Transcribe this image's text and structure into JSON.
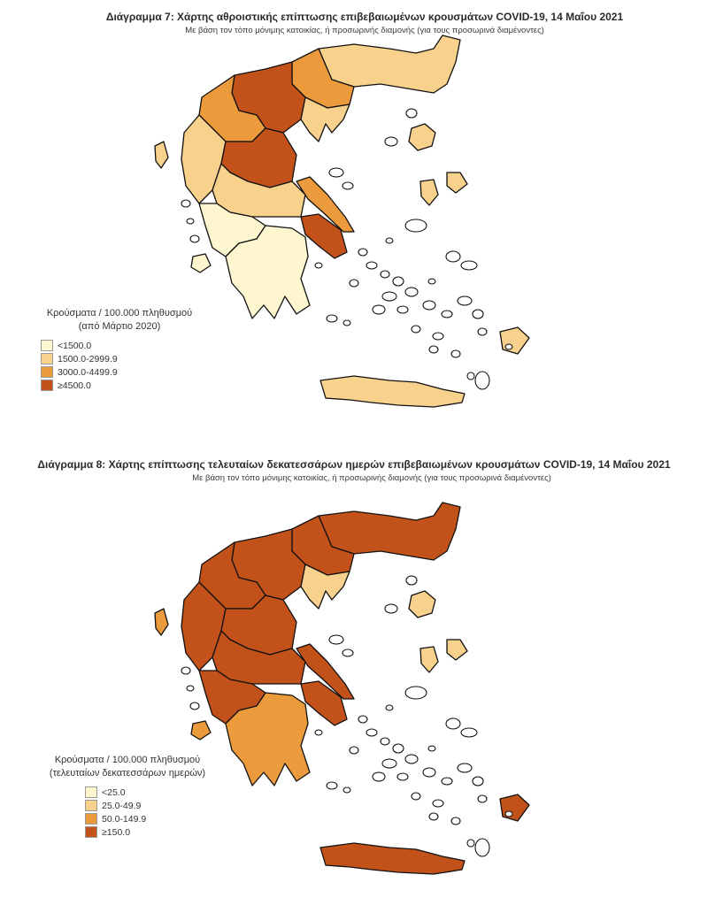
{
  "colors": {
    "c1": "#fdf6cf",
    "c2": "#f8d18c",
    "c3": "#eb9a3c",
    "c4": "#c2521a"
  },
  "maps": [
    {
      "title": "Διάγραμμα 7: Χάρτης αθροιστικής επίπτωσης επιβεβαιωμένων κρουσμάτων COVID-19, 14 Μαΐου 2021",
      "subtitle": "Με βάση τον τόπο μόνιμης κατοικίας, ή προσωρινής διαμονής (για τους προσωρινά διαμένοντες)",
      "legend_title_line1": "Κρούσματα / 100.000 πληθυσμού",
      "legend_title_line2": "(από Μάρτιο 2020)",
      "legend": [
        {
          "label": "<1500.0",
          "color": "#fdf6cf"
        },
        {
          "label": "1500.0-2999.9",
          "color": "#f8d18c"
        },
        {
          "label": "3000.0-4499.9",
          "color": "#eb9a3c"
        },
        {
          "label": "≥4500.0",
          "color": "#c2521a"
        }
      ]
    },
    {
      "title": "Διάγραμμα 8: Χάρτης επίπτωσης τελευταίων δεκατεσσάρων ημερών επιβεβαιωμένων κρουσμάτων COVID-19, 14 Μαΐου 2021",
      "subtitle": "Με βάση τον τόπο μόνιμης κατοικίας, ή προσωρινής διαμονής (για τους προσωρινά διαμένοντες)",
      "legend_title_line1": "Κρούσματα / 100.000 πληθυσμού",
      "legend_title_line2": "(τελευταίων δεκατεσσάρων ημερών)",
      "legend": [
        {
          "label": "<25.0",
          "color": "#fdf6cf"
        },
        {
          "label": "25.0-49.9",
          "color": "#f8d18c"
        },
        {
          "label": "50.0-149.9",
          "color": "#eb9a3c"
        },
        {
          "label": "≥150.0",
          "color": "#c2521a"
        }
      ]
    }
  ],
  "regions": {
    "thrace": [
      "c2",
      "c4"
    ],
    "east_mac": [
      "c3",
      "c4"
    ],
    "central_mac": [
      "c4",
      "c4"
    ],
    "west_mac": [
      "c3",
      "c4"
    ],
    "halkidiki": [
      "c2",
      "c2"
    ],
    "epirus": [
      "c2",
      "c4"
    ],
    "corfu": [
      "c2",
      "c3"
    ],
    "thessaly": [
      "c4",
      "c4"
    ],
    "central_greece": [
      "c2",
      "c4"
    ],
    "euboea": [
      "c3",
      "c4"
    ],
    "attica": [
      "c4",
      "c4"
    ],
    "west_greece": [
      "c1",
      "c4"
    ],
    "peloponnese": [
      "c1",
      "c3"
    ],
    "lesvos": [
      "c2",
      "c2"
    ],
    "chios": [
      "c2",
      "c2"
    ],
    "samos": [
      "c2",
      "c2"
    ],
    "rhodes": [
      "c2",
      "c4"
    ],
    "crete": [
      "c2",
      "c4"
    ],
    "kefalonia": [
      "c1",
      "c3"
    ]
  }
}
